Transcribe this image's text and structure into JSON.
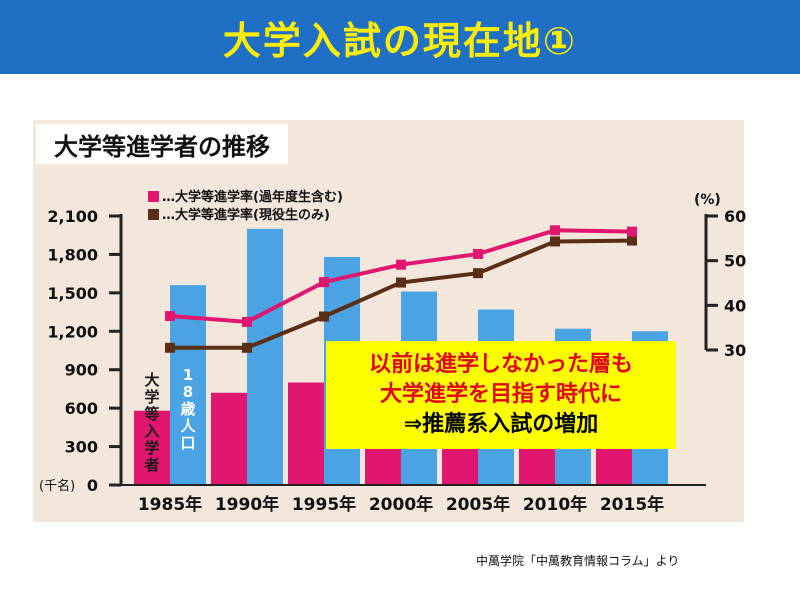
{
  "header": {
    "title": "大学入試の現在地①"
  },
  "chart_title": "大学等進学者の推移",
  "callout": {
    "line1": "以前は進学しなかった層も",
    "line2": "大学進学を目指す時代に",
    "line3": "⇒推薦系入試の増加"
  },
  "source": "中萬学院「中萬教育情報コラム」より",
  "colors": {
    "header_bg": "#1f6fc4",
    "header_text": "#ffee00",
    "panel_bg": "#f3e7dc",
    "bar_population": "#4aa3e3",
    "bar_entrants": "#e0166f",
    "line_total": "#e0166f",
    "line_current": "#5a2e17",
    "callout_bg": "#ffff00",
    "callout_red": "#e0001a"
  },
  "chart_data": {
    "type": "bar",
    "categories": [
      "1985年",
      "1990年",
      "1995年",
      "2000年",
      "2005年",
      "2010年",
      "2015年"
    ],
    "left_axis": {
      "ticks": [
        "0",
        "300",
        "600",
        "900",
        "1,200",
        "1,500",
        "1,800",
        "2,100"
      ],
      "unit": "(千名)",
      "ylim": [
        0,
        2100
      ]
    },
    "right_axis": {
      "ticks": [
        "30",
        "40",
        "50",
        "60"
      ],
      "unit": "(%)",
      "ylim": [
        30,
        60
      ]
    },
    "bar_series": [
      {
        "name": "大学等入学者",
        "values": [
          580,
          720,
          800,
          880,
          880,
          880,
          880
        ]
      },
      {
        "name": "18歳人口",
        "values": [
          1560,
          2000,
          1780,
          1510,
          1370,
          1220,
          1200
        ]
      }
    ],
    "line_series": [
      {
        "name": "…大学等進学率(過年度生含む)",
        "values": [
          37.6,
          36.3,
          45.2,
          49.1,
          51.5,
          56.8,
          56.5
        ]
      },
      {
        "name": "…大学等進学率(現役生のみ)",
        "values": [
          30.5,
          30.5,
          37.5,
          45.1,
          47.2,
          54.3,
          54.5
        ]
      }
    ],
    "bar_labels": {
      "entrants": "大学等入学者",
      "population": "18歳人口"
    }
  }
}
